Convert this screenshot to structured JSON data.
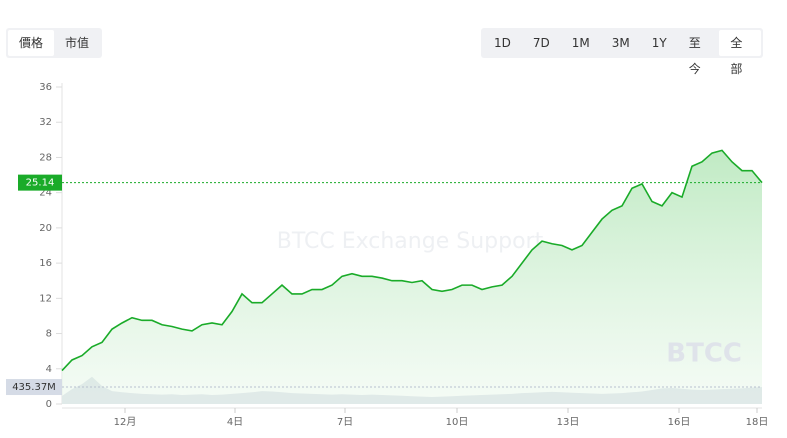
{
  "tabs": [
    {
      "label": "價格",
      "selected": true
    },
    {
      "label": "市值",
      "selected": false
    }
  ],
  "ranges": [
    {
      "label": "1D",
      "selected": false
    },
    {
      "label": "7D",
      "selected": false
    },
    {
      "label": "1M",
      "selected": false
    },
    {
      "label": "3M",
      "selected": false
    },
    {
      "label": "1Y",
      "selected": false
    },
    {
      "label": "至今",
      "selected": false
    },
    {
      "label": "全部",
      "selected": true
    }
  ],
  "chart_data": {
    "type": "line",
    "color": "#1aab29",
    "values": [
      3.8,
      5,
      5.5,
      6.5,
      7,
      8.5,
      9.2,
      9.8,
      9.5,
      9.5,
      9,
      8.8,
      8.5,
      8.3,
      9,
      9.2,
      9,
      10.5,
      12.5,
      11.5,
      11.5,
      12.5,
      13.5,
      12.5,
      12.5,
      13,
      13,
      13.5,
      14.5,
      14.8,
      14.5,
      14.5,
      14.3,
      14,
      14,
      13.8,
      14,
      13,
      12.8,
      13,
      13.5,
      13.5,
      13,
      13.3,
      13.5,
      14.5,
      16,
      17.5,
      18.5,
      18.2,
      18,
      17.5,
      18,
      19.5,
      21,
      22,
      22.5,
      24.5,
      25,
      23,
      22.5,
      24,
      23.5,
      27,
      27.5,
      28.5,
      28.8,
      27.5,
      26.5,
      26.5,
      25.14
    ],
    "xlim": [
      0,
      70
    ],
    "xticks": [
      {
        "value": 6.3,
        "label": "12月"
      },
      {
        "value": 17.3,
        "label": "4日"
      },
      {
        "value": 28.3,
        "label": "7日"
      },
      {
        "value": 39.5,
        "label": "10日"
      },
      {
        "value": 50.6,
        "label": "13日"
      },
      {
        "value": 61.7,
        "label": "16日"
      },
      {
        "value": 69.5,
        "label": "18日"
      }
    ],
    "ylim": [
      0,
      36
    ],
    "yticks": [
      0,
      4,
      8,
      12,
      16,
      20,
      24,
      28,
      32,
      36
    ],
    "last_price": 25.14,
    "volume": {
      "color": "#ccd3e0",
      "last_label": "435.37M",
      "values": [
        205,
        380,
        510,
        700,
        460,
        330,
        300,
        280,
        260,
        250,
        240,
        250,
        230,
        240,
        250,
        230,
        240,
        260,
        280,
        300,
        330,
        320,
        300,
        280,
        270,
        260,
        250,
        240,
        250,
        240,
        230,
        240,
        230,
        220,
        210,
        200,
        190,
        180,
        190,
        200,
        210,
        220,
        230,
        240,
        250,
        260,
        280,
        290,
        300,
        310,
        300,
        290,
        280,
        270,
        260,
        270,
        280,
        300,
        320,
        360,
        400,
        410,
        390,
        370,
        360,
        370,
        380,
        390,
        400,
        420,
        435.37
      ]
    },
    "watermark": "BTCC Exchange Support",
    "logo": "BTCC"
  }
}
